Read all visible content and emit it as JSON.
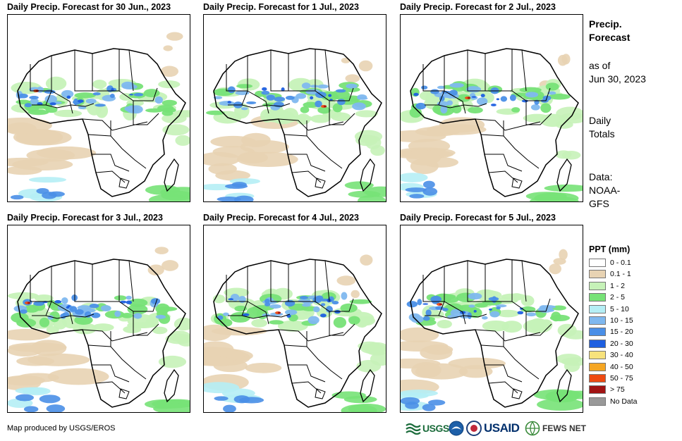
{
  "panels": [
    {
      "title": "Daily Precip. Forecast for 30 Jun., 2023"
    },
    {
      "title": "Daily Precip. Forecast for 1 Jul., 2023"
    },
    {
      "title": "Daily Precip. Forecast for 2 Jul., 2023"
    },
    {
      "title": "Daily Precip. Forecast for 3 Jul., 2023"
    },
    {
      "title": "Daily Precip. Forecast for 4 Jul., 2023"
    },
    {
      "title": "Daily Precip. Forecast for 5 Jul., 2023"
    }
  ],
  "sidebar": {
    "title_line1": "Precip.",
    "title_line2": "Forecast",
    "asof_line1": "as of",
    "asof_line2": "Jun 30, 2023",
    "totals_line1": "Daily",
    "totals_line2": "Totals",
    "data_line1": "Data:",
    "data_line2": "NOAA-",
    "data_line3": "GFS"
  },
  "legend": {
    "title": "PPT (mm)",
    "items": [
      {
        "label": "0 - 0.1",
        "color": "#ffffff"
      },
      {
        "label": "0.1 - 1",
        "color": "#e8d3b3"
      },
      {
        "label": "1 - 2",
        "color": "#c6f2b8"
      },
      {
        "label": "2 - 5",
        "color": "#77e277"
      },
      {
        "label": "5 - 10",
        "color": "#b5eef5"
      },
      {
        "label": "10 - 15",
        "color": "#7fb8ef"
      },
      {
        "label": "15 - 20",
        "color": "#4a8fe7"
      },
      {
        "label": "20 - 30",
        "color": "#1e5fe0"
      },
      {
        "label": "30 - 40",
        "color": "#f7e27c"
      },
      {
        "label": "40 - 50",
        "color": "#f5a623"
      },
      {
        "label": "50 - 75",
        "color": "#ee4a12"
      },
      {
        "label": "> 75",
        "color": "#a11313"
      },
      {
        "label": "No Data",
        "color": "#999999"
      }
    ]
  },
  "footer": {
    "credit": "Map produced by USGS/EROS",
    "logo_usgs": "USGS",
    "logo_usaid": "USAID",
    "logo_fews": "FEWS NET"
  }
}
